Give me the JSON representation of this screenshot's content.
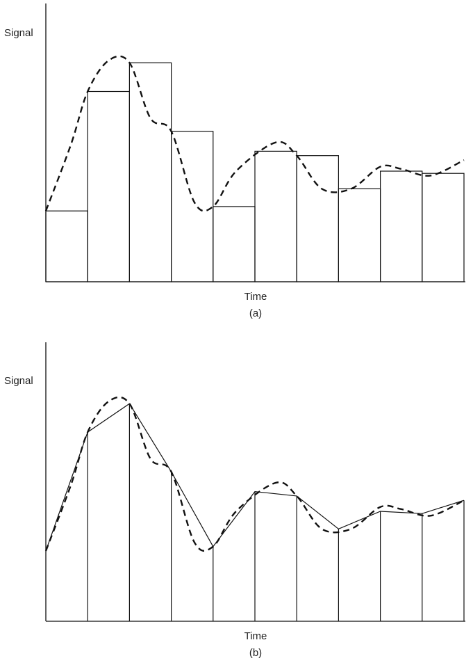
{
  "panel_a": {
    "y_label": "Signal",
    "x_label": "Time",
    "caption": "(a)"
  },
  "panel_b": {
    "y_label": "Signal",
    "x_label": "Time",
    "caption": "(b)"
  },
  "chart_data": [
    {
      "type": "bar",
      "panel": "a",
      "description_kind": "zero-order hold (rectangles) over continuous signal (dashed)",
      "sample_values": [
        0.32,
        0.86,
        0.99,
        0.68,
        0.34,
        0.59,
        0.57,
        0.42,
        0.5,
        0.49
      ]
    },
    {
      "type": "line",
      "panel": "b",
      "description_kind": "first-order (linear) interpolation over continuous signal (dashed)",
      "sample_values": [
        0.32,
        0.86,
        0.99,
        0.68,
        0.34,
        0.59,
        0.57,
        0.42,
        0.5,
        0.49,
        0.55
      ]
    }
  ]
}
